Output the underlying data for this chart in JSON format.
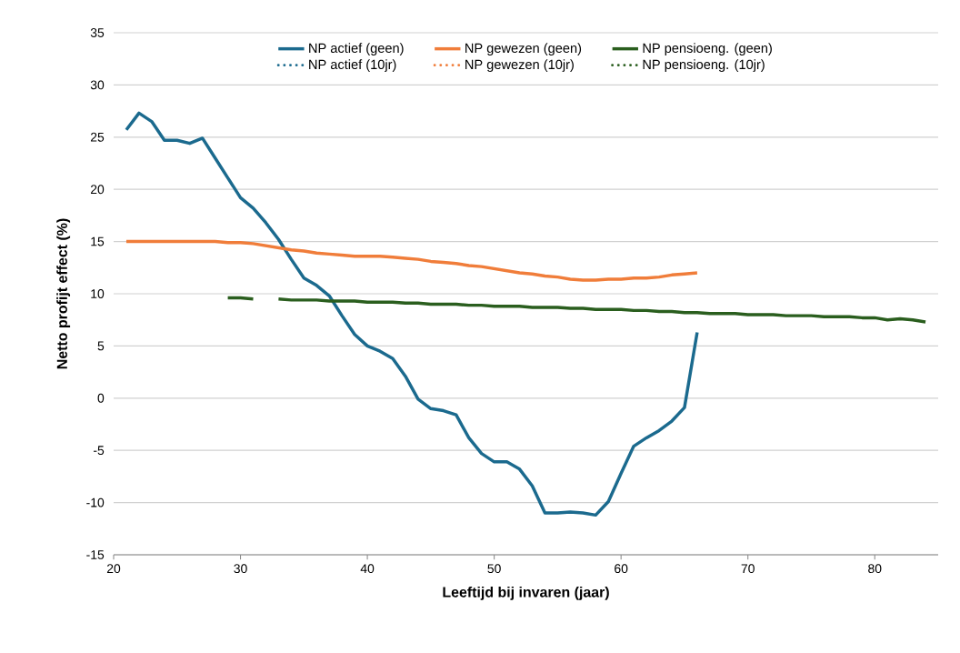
{
  "chart_data": {
    "type": "line",
    "xlabel": "Leeftijd bij invaren (jaar)",
    "ylabel": "Netto profijt effect (%)",
    "x": [
      21,
      22,
      23,
      24,
      25,
      26,
      27,
      28,
      29,
      30,
      31,
      32,
      33,
      34,
      35,
      36,
      37,
      38,
      39,
      40,
      41,
      42,
      43,
      44,
      45,
      46,
      47,
      48,
      49,
      50,
      51,
      52,
      53,
      54,
      55,
      56,
      57,
      58,
      59,
      60,
      61,
      62,
      63,
      64,
      65,
      66,
      67,
      68,
      69,
      70,
      71,
      72,
      73,
      74,
      75,
      76,
      77,
      78,
      79,
      80,
      81,
      82,
      83,
      84
    ],
    "series": [
      {
        "name": "NP actief (geen)",
        "color": "#1b6a8e",
        "line_style": "solid",
        "values": [
          25.7,
          27.3,
          26.5,
          24.7,
          24.7,
          24.4,
          24.9,
          23.0,
          21.1,
          19.2,
          18.2,
          16.8,
          15.2,
          13.3,
          11.5,
          10.8,
          9.8,
          7.9,
          6.1,
          5.0,
          4.5,
          3.8,
          2.1,
          -0.1,
          -1.0,
          -1.2,
          -1.6,
          -3.8,
          -5.3,
          -6.1,
          -6.1,
          -6.8,
          -8.4,
          -11.0,
          -11.0,
          -10.9,
          -11.0,
          -11.2,
          -9.9,
          -7.2,
          -4.6,
          -3.8,
          -3.1,
          -2.2,
          -0.9,
          6.3,
          null,
          null,
          null,
          null,
          null,
          null,
          null,
          null,
          null,
          null,
          null,
          null,
          null,
          null,
          null,
          null,
          null,
          null
        ]
      },
      {
        "name": "NP gewezen (geen)",
        "color": "#f07d3a",
        "line_style": "solid",
        "values": [
          15.0,
          15.0,
          15.0,
          15.0,
          15.0,
          15.0,
          15.0,
          15.0,
          14.9,
          14.9,
          14.8,
          14.6,
          14.4,
          14.2,
          14.1,
          13.9,
          13.8,
          13.7,
          13.6,
          13.6,
          13.6,
          13.5,
          13.4,
          13.3,
          13.1,
          13.0,
          12.9,
          12.7,
          12.6,
          12.4,
          12.2,
          12.0,
          11.9,
          11.7,
          11.6,
          11.4,
          11.3,
          11.3,
          11.4,
          11.4,
          11.5,
          11.5,
          11.6,
          11.8,
          11.9,
          12.0,
          null,
          null,
          null,
          null,
          null,
          null,
          null,
          null,
          null,
          null,
          null,
          null,
          null,
          null,
          null,
          null,
          null,
          null
        ]
      },
      {
        "name": "NP pensioeng. (geen)",
        "color": "#2a5e1e",
        "line_style": "solid",
        "values": [
          null,
          null,
          null,
          null,
          null,
          null,
          null,
          null,
          9.6,
          9.6,
          9.5,
          null,
          9.5,
          9.4,
          9.4,
          9.4,
          9.3,
          9.3,
          9.3,
          9.2,
          9.2,
          9.2,
          9.1,
          9.1,
          9.0,
          9.0,
          9.0,
          8.9,
          8.9,
          8.8,
          8.8,
          8.8,
          8.7,
          8.7,
          8.7,
          8.6,
          8.6,
          8.5,
          8.5,
          8.5,
          8.4,
          8.4,
          8.3,
          8.3,
          8.2,
          8.2,
          8.1,
          8.1,
          8.1,
          8.0,
          8.0,
          8.0,
          7.9,
          7.9,
          7.9,
          7.8,
          7.8,
          7.8,
          7.7,
          7.7,
          7.5,
          7.6,
          7.5,
          7.3
        ]
      },
      {
        "name": "NP actief (10jr)",
        "color": "#1b6a8e",
        "line_style": "dotted",
        "values": [
          null,
          null,
          null,
          null,
          null,
          null,
          null,
          null,
          null,
          null,
          null,
          null,
          null,
          null,
          null,
          null,
          null,
          null,
          null,
          null,
          null,
          null,
          null,
          null,
          null,
          null,
          null,
          null,
          null,
          null,
          null,
          null,
          null,
          null,
          null,
          null,
          null,
          null,
          null,
          null,
          null,
          null,
          null,
          null,
          null,
          null,
          null,
          null,
          null,
          null,
          null,
          null,
          null,
          null,
          null,
          null,
          null,
          null,
          null,
          null,
          null,
          null,
          null,
          null
        ]
      },
      {
        "name": "NP gewezen (10jr)",
        "color": "#f07d3a",
        "line_style": "dotted",
        "values": [
          null,
          null,
          null,
          null,
          null,
          null,
          null,
          null,
          null,
          null,
          null,
          null,
          null,
          null,
          null,
          null,
          null,
          null,
          null,
          null,
          null,
          null,
          null,
          null,
          null,
          null,
          null,
          null,
          null,
          null,
          null,
          null,
          null,
          null,
          null,
          null,
          null,
          null,
          null,
          null,
          null,
          null,
          null,
          null,
          null,
          null,
          null,
          null,
          null,
          null,
          null,
          null,
          null,
          null,
          null,
          null,
          null,
          null,
          null,
          null,
          null,
          null,
          null,
          null
        ]
      },
      {
        "name": "NP pensioeng. (10jr)",
        "color": "#2a5e1e",
        "line_style": "dotted",
        "values": [
          null,
          null,
          null,
          null,
          null,
          null,
          null,
          null,
          null,
          null,
          null,
          null,
          null,
          null,
          null,
          null,
          null,
          null,
          null,
          null,
          null,
          null,
          null,
          null,
          null,
          null,
          null,
          null,
          null,
          null,
          null,
          null,
          null,
          null,
          null,
          null,
          null,
          null,
          null,
          null,
          null,
          null,
          null,
          null,
          null,
          null,
          null,
          null,
          null,
          null,
          null,
          null,
          null,
          null,
          null,
          null,
          null,
          null,
          null,
          null,
          null,
          null,
          null,
          null
        ]
      }
    ],
    "xlim": [
      20,
      85
    ],
    "xticks": [
      20,
      30,
      40,
      50,
      60,
      70,
      80
    ],
    "ylim": [
      -15,
      35
    ],
    "yticks": [
      -15,
      -10,
      -5,
      0,
      5,
      10,
      15,
      20,
      25,
      30,
      35
    ],
    "grid": "y",
    "legend": "top",
    "marker": "none"
  }
}
